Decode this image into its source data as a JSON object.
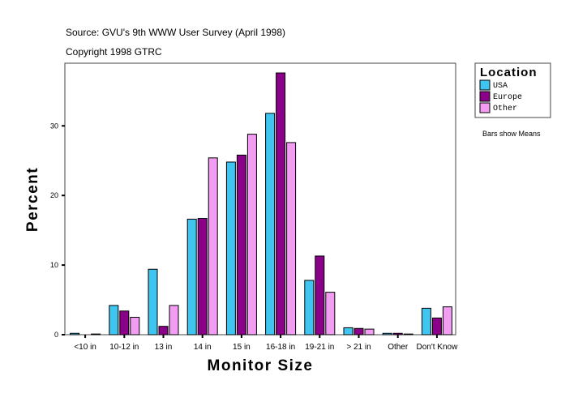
{
  "header": {
    "source": "Source: GVU's 9th WWW User Survey (April 1998)",
    "copyright": "Copyright 1998 GTRC"
  },
  "note": "Bars show Means",
  "chart_data": {
    "type": "bar",
    "title": "",
    "xlabel": "Monitor Size",
    "ylabel": "Percent",
    "ylim": [
      0,
      39
    ],
    "yticks": [
      0,
      10,
      20,
      30
    ],
    "grid": false,
    "legend": {
      "title": "Location",
      "placement": "right"
    },
    "categories": [
      "<10 in",
      "10-12 in",
      "13 in",
      "14 in",
      "15 in",
      "16-18 in",
      "19-21 in",
      "> 21 in",
      "Other",
      "Don't Know"
    ],
    "series": [
      {
        "name": "USA",
        "color": "#40c4f0",
        "values": [
          0.2,
          4.2,
          9.4,
          16.6,
          24.8,
          31.8,
          7.8,
          1.0,
          0.2,
          3.8
        ]
      },
      {
        "name": "Europe",
        "color": "#8b0088",
        "values": [
          0.0,
          3.4,
          1.2,
          16.7,
          25.8,
          37.6,
          11.3,
          0.9,
          0.2,
          2.4
        ]
      },
      {
        "name": "Other",
        "color": "#f29cf2",
        "values": [
          0.1,
          2.5,
          4.2,
          25.4,
          28.8,
          27.6,
          6.1,
          0.8,
          0.1,
          4.0
        ]
      }
    ]
  }
}
